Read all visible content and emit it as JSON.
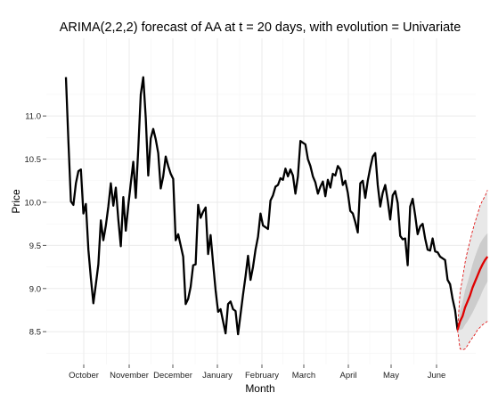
{
  "chart_data": {
    "type": "line",
    "title": "ARIMA(2,2,2) forecast of AA at t = 20 days, with evolution = Univariate",
    "xlabel": "Month",
    "ylabel": "Price",
    "ylim": [
      8.12,
      11.9
    ],
    "y_ticks": [
      8.5,
      9.0,
      9.5,
      10.0,
      10.5,
      11.0
    ],
    "x_ticks": [
      "October",
      "November",
      "December",
      "January",
      "February",
      "March",
      "April",
      "May",
      "June"
    ],
    "grid": true,
    "legend": "none",
    "colors": {
      "history": "#000000",
      "forecast": "#e00000",
      "band_inner": "#cccccc",
      "band_outer": "#e8e8e8",
      "panel": "#ffffff",
      "grid": "#ebebeb"
    },
    "series": [
      {
        "id": "history",
        "points": [
          [
            0,
            11.45
          ],
          [
            1,
            10.7
          ],
          [
            2,
            10.01
          ],
          [
            3,
            9.97
          ],
          [
            4,
            10.22
          ],
          [
            5,
            10.36
          ],
          [
            6,
            10.38
          ],
          [
            7,
            9.87
          ],
          [
            8,
            9.98
          ],
          [
            9,
            9.45
          ],
          [
            10,
            9.12
          ],
          [
            11,
            8.83
          ],
          [
            12,
            9.05
          ],
          [
            13,
            9.28
          ],
          [
            14,
            9.79
          ],
          [
            15,
            9.56
          ],
          [
            16,
            9.73
          ],
          [
            17,
            9.95
          ],
          [
            18,
            10.22
          ],
          [
            19,
            9.96
          ],
          [
            20,
            10.17
          ],
          [
            21,
            9.8
          ],
          [
            22,
            9.49
          ],
          [
            23,
            10.06
          ],
          [
            24,
            9.67
          ],
          [
            25,
            9.96
          ],
          [
            26,
            10.22
          ],
          [
            27,
            10.47
          ],
          [
            28,
            10.05
          ],
          [
            29,
            10.62
          ],
          [
            30,
            11.25
          ],
          [
            31,
            11.45
          ],
          [
            32,
            10.98
          ],
          [
            33,
            10.31
          ],
          [
            34,
            10.74
          ],
          [
            35,
            10.85
          ],
          [
            36,
            10.73
          ],
          [
            37,
            10.57
          ],
          [
            38,
            10.16
          ],
          [
            39,
            10.3
          ],
          [
            40,
            10.53
          ],
          [
            41,
            10.42
          ],
          [
            42,
            10.33
          ],
          [
            43,
            10.27
          ],
          [
            44,
            9.56
          ],
          [
            45,
            9.63
          ],
          [
            46,
            9.5
          ],
          [
            47,
            9.37
          ],
          [
            48,
            8.82
          ],
          [
            49,
            8.88
          ],
          [
            50,
            9.02
          ],
          [
            51,
            9.27
          ],
          [
            52,
            9.28
          ],
          [
            53,
            9.97
          ],
          [
            54,
            9.82
          ],
          [
            55,
            9.89
          ],
          [
            56,
            9.94
          ],
          [
            57,
            9.4
          ],
          [
            58,
            9.62
          ],
          [
            59,
            9.29
          ],
          [
            60,
            8.98
          ],
          [
            61,
            8.73
          ],
          [
            62,
            8.76
          ],
          [
            63,
            8.62
          ],
          [
            64,
            8.48
          ],
          [
            65,
            8.82
          ],
          [
            66,
            8.85
          ],
          [
            67,
            8.76
          ],
          [
            68,
            8.74
          ],
          [
            69,
            8.47
          ],
          [
            70,
            8.7
          ],
          [
            71,
            8.93
          ],
          [
            72,
            9.14
          ],
          [
            73,
            9.38
          ],
          [
            74,
            9.1
          ],
          [
            75,
            9.25
          ],
          [
            76,
            9.45
          ],
          [
            77,
            9.6
          ],
          [
            78,
            9.87
          ],
          [
            79,
            9.73
          ],
          [
            80,
            9.71
          ],
          [
            81,
            9.69
          ],
          [
            82,
            10.02
          ],
          [
            83,
            10.08
          ],
          [
            84,
            10.18
          ],
          [
            85,
            10.2
          ],
          [
            86,
            10.28
          ],
          [
            87,
            10.26
          ],
          [
            88,
            10.39
          ],
          [
            89,
            10.3
          ],
          [
            90,
            10.38
          ],
          [
            91,
            10.31
          ],
          [
            92,
            10.1
          ],
          [
            93,
            10.3
          ],
          [
            94,
            10.71
          ],
          [
            95,
            10.69
          ],
          [
            96,
            10.67
          ],
          [
            97,
            10.5
          ],
          [
            98,
            10.42
          ],
          [
            99,
            10.3
          ],
          [
            100,
            10.23
          ],
          [
            101,
            10.1
          ],
          [
            102,
            10.18
          ],
          [
            103,
            10.24
          ],
          [
            104,
            10.07
          ],
          [
            105,
            10.26
          ],
          [
            106,
            10.17
          ],
          [
            107,
            10.33
          ],
          [
            108,
            10.31
          ],
          [
            109,
            10.42
          ],
          [
            110,
            10.38
          ],
          [
            111,
            10.2
          ],
          [
            112,
            10.25
          ],
          [
            113,
            10.11
          ],
          [
            114,
            9.9
          ],
          [
            115,
            9.87
          ],
          [
            116,
            9.77
          ],
          [
            117,
            9.65
          ],
          [
            118,
            10.22
          ],
          [
            119,
            10.25
          ],
          [
            120,
            10.05
          ],
          [
            121,
            10.25
          ],
          [
            122,
            10.4
          ],
          [
            123,
            10.53
          ],
          [
            124,
            10.57
          ],
          [
            125,
            10.2
          ],
          [
            126,
            9.95
          ],
          [
            127,
            10.11
          ],
          [
            128,
            10.2
          ],
          [
            129,
            10.02
          ],
          [
            130,
            9.8
          ],
          [
            131,
            10.08
          ],
          [
            132,
            10.13
          ],
          [
            133,
            9.99
          ],
          [
            134,
            9.61
          ],
          [
            135,
            9.57
          ],
          [
            136,
            9.58
          ],
          [
            137,
            9.27
          ],
          [
            138,
            9.95
          ],
          [
            139,
            10.04
          ],
          [
            140,
            9.85
          ],
          [
            141,
            9.63
          ],
          [
            142,
            9.72
          ],
          [
            143,
            9.75
          ],
          [
            144,
            9.58
          ],
          [
            145,
            9.45
          ],
          [
            146,
            9.44
          ],
          [
            147,
            9.58
          ],
          [
            148,
            9.43
          ],
          [
            149,
            9.42
          ],
          [
            150,
            9.37
          ],
          [
            151,
            9.35
          ],
          [
            152,
            9.33
          ],
          [
            153,
            9.1
          ],
          [
            154,
            9.05
          ],
          [
            155,
            8.88
          ],
          [
            156,
            8.75
          ],
          [
            157,
            8.52
          ]
        ]
      }
    ],
    "forecast": {
      "mean": [
        [
          157,
          8.52
        ],
        [
          158,
          8.62
        ],
        [
          159,
          8.68
        ],
        [
          160,
          8.78
        ],
        [
          161,
          8.85
        ],
        [
          162,
          8.92
        ],
        [
          163,
          9.01
        ],
        [
          164,
          9.08
        ],
        [
          165,
          9.15
        ],
        [
          166,
          9.22
        ],
        [
          167,
          9.28
        ],
        [
          168,
          9.33
        ],
        [
          169,
          9.37
        ]
      ],
      "band_inner_upper": [
        [
          157,
          8.52
        ],
        [
          158,
          8.74
        ],
        [
          159,
          8.84
        ],
        [
          160,
          8.98
        ],
        [
          161,
          9.07
        ],
        [
          162,
          9.17
        ],
        [
          163,
          9.28
        ],
        [
          164,
          9.37
        ],
        [
          165,
          9.45
        ],
        [
          166,
          9.52
        ],
        [
          167,
          9.57
        ],
        [
          168,
          9.61
        ],
        [
          169,
          9.64
        ]
      ],
      "band_inner_lower": [
        [
          157,
          8.52
        ],
        [
          158,
          8.52
        ],
        [
          159,
          8.53
        ],
        [
          160,
          8.58
        ],
        [
          161,
          8.62
        ],
        [
          162,
          8.67
        ],
        [
          163,
          8.72
        ],
        [
          164,
          8.78
        ],
        [
          165,
          8.84
        ],
        [
          166,
          8.9
        ],
        [
          167,
          8.97
        ],
        [
          168,
          9.03
        ],
        [
          169,
          9.08
        ]
      ],
      "band_outer_upper": [
        [
          157,
          8.52
        ],
        [
          158,
          8.96
        ],
        [
          159,
          9.12
        ],
        [
          160,
          9.3
        ],
        [
          161,
          9.44
        ],
        [
          162,
          9.55
        ],
        [
          163,
          9.67
        ],
        [
          164,
          9.77
        ],
        [
          165,
          9.86
        ],
        [
          166,
          9.96
        ],
        [
          167,
          10.02
        ],
        [
          168,
          10.07
        ],
        [
          169,
          10.14
        ]
      ],
      "band_outer_lower": [
        [
          157,
          8.52
        ],
        [
          158,
          8.3
        ],
        [
          159,
          8.29
        ],
        [
          160,
          8.3
        ],
        [
          161,
          8.34
        ],
        [
          162,
          8.39
        ],
        [
          163,
          8.43
        ],
        [
          164,
          8.47
        ],
        [
          165,
          8.52
        ],
        [
          166,
          8.55
        ],
        [
          167,
          8.58
        ],
        [
          168,
          8.6
        ],
        [
          169,
          8.62
        ]
      ]
    }
  }
}
